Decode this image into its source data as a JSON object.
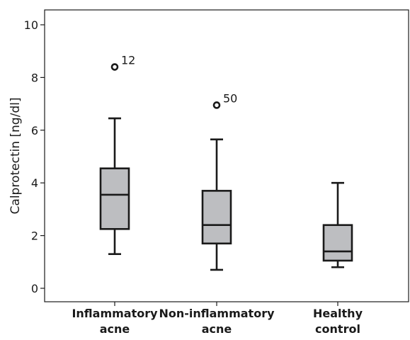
{
  "chart_data": {
    "type": "box",
    "ylabel": "Calprotectin [ng/dl]",
    "ylim": [
      -0.5,
      10.5
    ],
    "yticks": [
      "0",
      "2",
      "4",
      "6",
      "8",
      "10"
    ],
    "categories": [
      {
        "lines": [
          "Inflammatory",
          "acne"
        ]
      },
      {
        "lines": [
          "Non-inflammatory",
          "acne"
        ]
      },
      {
        "lines": [
          "Healthy",
          "control"
        ]
      }
    ],
    "boxes": [
      {
        "min": 1.3,
        "q1": 2.25,
        "median": 3.55,
        "q3": 4.55,
        "max": 6.45,
        "outliers": [
          {
            "value": 8.4,
            "label": "12"
          }
        ]
      },
      {
        "min": 0.7,
        "q1": 1.7,
        "median": 2.4,
        "q3": 3.7,
        "max": 5.65,
        "outliers": [
          {
            "value": 6.95,
            "label": "50"
          }
        ]
      },
      {
        "min": 0.8,
        "q1": 1.05,
        "median": 1.4,
        "q3": 2.4,
        "max": 4.0,
        "outliers": []
      }
    ],
    "colors": {
      "box_fill": "#bdbec1",
      "stroke": "#1a1a1a"
    }
  }
}
